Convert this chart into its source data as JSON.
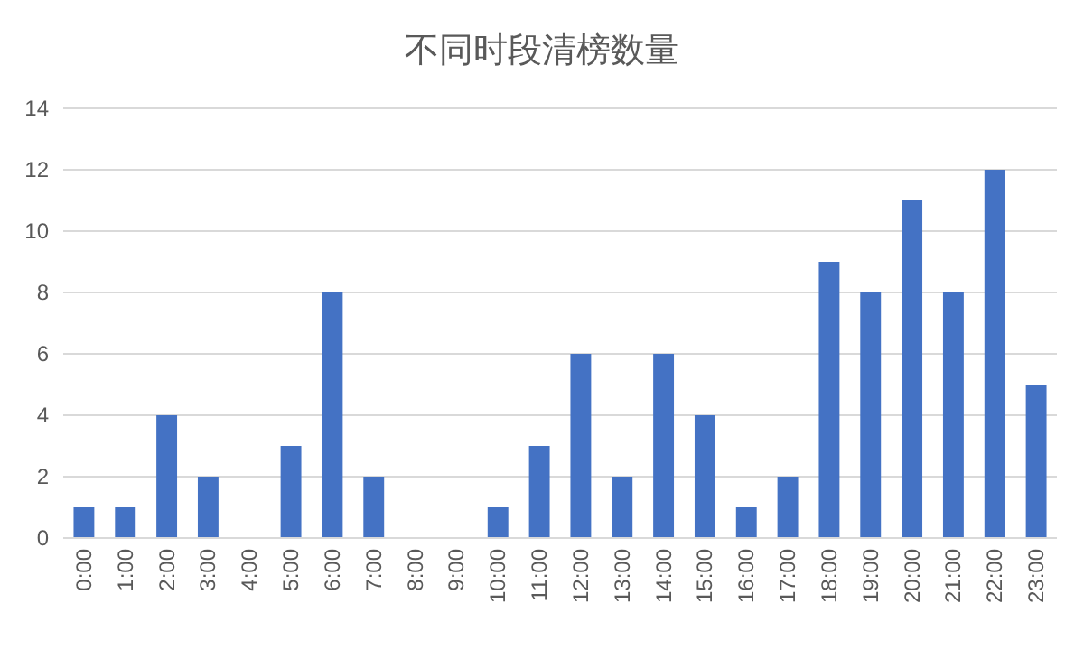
{
  "chart_data": {
    "type": "bar",
    "title": "不同时段清榜数量",
    "categories": [
      "0:00",
      "1:00",
      "2:00",
      "3:00",
      "4:00",
      "5:00",
      "6:00",
      "7:00",
      "8:00",
      "9:00",
      "10:00",
      "11:00",
      "12:00",
      "13:00",
      "14:00",
      "15:00",
      "16:00",
      "17:00",
      "18:00",
      "19:00",
      "20:00",
      "21:00",
      "22:00",
      "23:00"
    ],
    "values": [
      1,
      1,
      4,
      2,
      0,
      3,
      8,
      2,
      0,
      0,
      1,
      3,
      6,
      2,
      6,
      4,
      1,
      2,
      9,
      8,
      11,
      8,
      12,
      5
    ],
    "color": "#4472c4",
    "ylim": [
      0,
      14
    ],
    "yticks": [
      0,
      2,
      4,
      6,
      8,
      10,
      12,
      14
    ],
    "grid": "y"
  }
}
